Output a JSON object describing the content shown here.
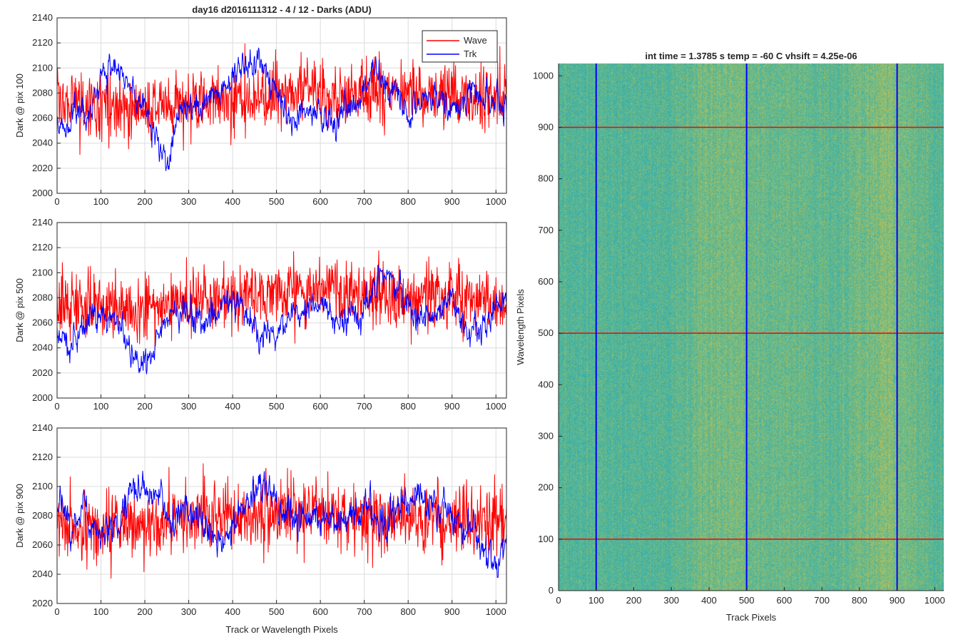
{
  "figure": {
    "suptitle": "day16 d2016111312 - 4 / 12 - Darks (ADU)",
    "image_title": "int time = 1.3785 s    temp = -60 C    vhsift = 4.25e-06"
  },
  "colors": {
    "wave": "#ff0000",
    "trk": "#0000ff",
    "grid": "#dcdcdc",
    "axis": "#262626",
    "image_low": "#1fa7c0",
    "image_mid": "#5cb890",
    "image_high": "#d2c24a"
  },
  "chart_data": [
    {
      "type": "line",
      "ylabel": "Dark @ pix 100",
      "xlabel": "",
      "xlim": [
        0,
        1024
      ],
      "ylim": [
        2000,
        2140
      ],
      "xticks": [
        0,
        100,
        200,
        300,
        400,
        500,
        600,
        700,
        800,
        900,
        1000
      ],
      "yticks": [
        2000,
        2020,
        2040,
        2060,
        2080,
        2100,
        2120,
        2140
      ],
      "grid": true,
      "legend": {
        "position": "top-right",
        "entries": [
          "Wave",
          "Trk"
        ]
      },
      "series": [
        {
          "name": "Wave",
          "color": "#ff0000",
          "mean": 2075,
          "noise": 13,
          "anchors": [
            [
              0,
              2072
            ],
            [
              100,
              2070
            ],
            [
              200,
              2068
            ],
            [
              300,
              2072
            ],
            [
              400,
              2075
            ],
            [
              500,
              2078
            ],
            [
              600,
              2080
            ],
            [
              700,
              2080
            ],
            [
              800,
              2080
            ],
            [
              900,
              2078
            ],
            [
              1024,
              2076
            ]
          ]
        },
        {
          "name": "Trk",
          "color": "#0000ff",
          "mean": 2070,
          "noise": 5,
          "anchors": [
            [
              0,
              2058
            ],
            [
              20,
              2048
            ],
            [
              40,
              2066
            ],
            [
              80,
              2070
            ],
            [
              100,
              2090
            ],
            [
              120,
              2100
            ],
            [
              160,
              2090
            ],
            [
              200,
              2070
            ],
            [
              230,
              2040
            ],
            [
              250,
              2022
            ],
            [
              270,
              2060
            ],
            [
              300,
              2072
            ],
            [
              340,
              2068
            ],
            [
              380,
              2085
            ],
            [
              420,
              2098
            ],
            [
              460,
              2106
            ],
            [
              490,
              2080
            ],
            [
              520,
              2062
            ],
            [
              560,
              2065
            ],
            [
              600,
              2068
            ],
            [
              620,
              2058
            ],
            [
              650,
              2063
            ],
            [
              700,
              2080
            ],
            [
              720,
              2096
            ],
            [
              760,
              2082
            ],
            [
              800,
              2066
            ],
            [
              850,
              2080
            ],
            [
              900,
              2068
            ],
            [
              950,
              2075
            ],
            [
              1000,
              2078
            ],
            [
              1024,
              2063
            ]
          ]
        }
      ]
    },
    {
      "type": "line",
      "ylabel": "Dark @ pix 500",
      "xlabel": "",
      "xlim": [
        0,
        1024
      ],
      "ylim": [
        2000,
        2140
      ],
      "xticks": [
        0,
        100,
        200,
        300,
        400,
        500,
        600,
        700,
        800,
        900,
        1000
      ],
      "yticks": [
        2000,
        2020,
        2040,
        2060,
        2080,
        2100,
        2120,
        2140
      ],
      "grid": true,
      "series": [
        {
          "name": "Wave",
          "color": "#ff0000",
          "mean": 2078,
          "noise": 13,
          "anchors": [
            [
              0,
              2076
            ],
            [
              100,
              2074
            ],
            [
              200,
              2072
            ],
            [
              300,
              2076
            ],
            [
              400,
              2080
            ],
            [
              500,
              2082
            ],
            [
              600,
              2084
            ],
            [
              700,
              2084
            ],
            [
              800,
              2080
            ],
            [
              900,
              2078
            ],
            [
              1024,
              2078
            ]
          ]
        },
        {
          "name": "Trk",
          "color": "#0000ff",
          "mean": 2060,
          "noise": 5,
          "anchors": [
            [
              0,
              2055
            ],
            [
              30,
              2045
            ],
            [
              60,
              2060
            ],
            [
              100,
              2070
            ],
            [
              130,
              2065
            ],
            [
              160,
              2045
            ],
            [
              200,
              2025
            ],
            [
              230,
              2050
            ],
            [
              260,
              2072
            ],
            [
              300,
              2065
            ],
            [
              340,
              2060
            ],
            [
              380,
              2080
            ],
            [
              420,
              2075
            ],
            [
              460,
              2050
            ],
            [
              500,
              2048
            ],
            [
              540,
              2070
            ],
            [
              600,
              2075
            ],
            [
              650,
              2062
            ],
            [
              700,
              2070
            ],
            [
              740,
              2100
            ],
            [
              760,
              2098
            ],
            [
              800,
              2070
            ],
            [
              850,
              2060
            ],
            [
              900,
              2075
            ],
            [
              940,
              2048
            ],
            [
              980,
              2060
            ],
            [
              1024,
              2085
            ]
          ]
        }
      ]
    },
    {
      "type": "line",
      "ylabel": "Dark @ pix 900",
      "xlabel": "Track or Wavelength Pixels",
      "xlim": [
        0,
        1024
      ],
      "ylim": [
        2020,
        2140
      ],
      "xticks": [
        0,
        100,
        200,
        300,
        400,
        500,
        600,
        700,
        800,
        900,
        1000
      ],
      "yticks": [
        2020,
        2040,
        2060,
        2080,
        2100,
        2120,
        2140
      ],
      "grid": true,
      "series": [
        {
          "name": "Wave",
          "color": "#ff0000",
          "mean": 2077,
          "noise": 12,
          "anchors": [
            [
              0,
              2074
            ],
            [
              100,
              2072
            ],
            [
              200,
              2074
            ],
            [
              300,
              2076
            ],
            [
              400,
              2080
            ],
            [
              500,
              2082
            ],
            [
              600,
              2082
            ],
            [
              700,
              2080
            ],
            [
              800,
              2078
            ],
            [
              900,
              2077
            ],
            [
              1024,
              2076
            ]
          ]
        },
        {
          "name": "Trk",
          "color": "#0000ff",
          "mean": 2082,
          "noise": 5,
          "anchors": [
            [
              0,
              2092
            ],
            [
              30,
              2070
            ],
            [
              60,
              2085
            ],
            [
              100,
              2068
            ],
            [
              140,
              2075
            ],
            [
              170,
              2098
            ],
            [
              220,
              2095
            ],
            [
              260,
              2075
            ],
            [
              300,
              2085
            ],
            [
              340,
              2070
            ],
            [
              380,
              2060
            ],
            [
              420,
              2085
            ],
            [
              460,
              2102
            ],
            [
              500,
              2090
            ],
            [
              540,
              2072
            ],
            [
              600,
              2080
            ],
            [
              650,
              2072
            ],
            [
              700,
              2085
            ],
            [
              750,
              2075
            ],
            [
              800,
              2095
            ],
            [
              850,
              2088
            ],
            [
              900,
              2080
            ],
            [
              950,
              2070
            ],
            [
              1000,
              2050
            ],
            [
              1024,
              2068
            ]
          ]
        }
      ]
    },
    {
      "type": "heatmap",
      "title": "int time = 1.3785 s    temp = -60 C    vhsift = 4.25e-06",
      "xlabel": "Track Pixels",
      "ylabel": "Wavelength Pixels",
      "xlim": [
        0,
        1024
      ],
      "ylim": [
        0,
        1024
      ],
      "xticks": [
        0,
        100,
        200,
        300,
        400,
        500,
        600,
        700,
        800,
        900,
        1000
      ],
      "yticks": [
        0,
        100,
        200,
        300,
        400,
        500,
        600,
        700,
        800,
        900,
        1000
      ],
      "vertical_lines": {
        "color": "#0000ff",
        "at": [
          100,
          500,
          900
        ]
      },
      "horizontal_lines": {
        "color": "#ff0000",
        "at": [
          100,
          500,
          900
        ]
      }
    }
  ]
}
